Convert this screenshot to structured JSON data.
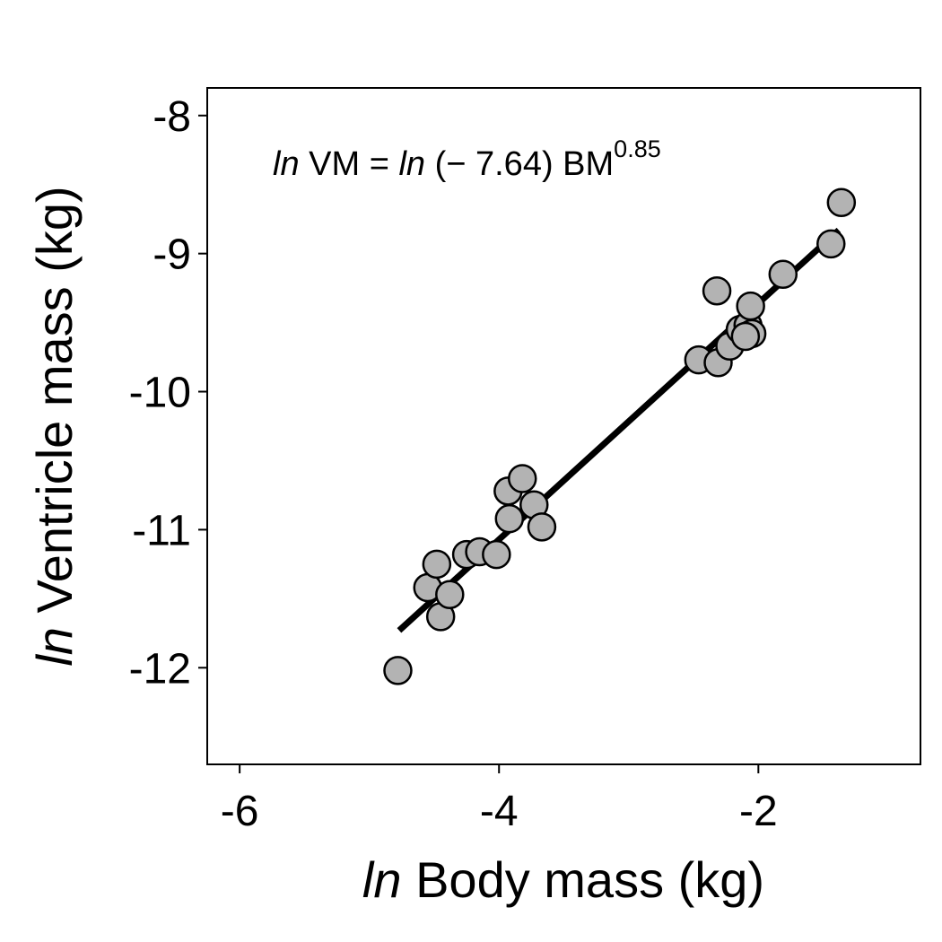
{
  "chart_data": {
    "type": "scatter",
    "title": "",
    "xlabel": {
      "prefix": "ln",
      "text": " Body mass (kg)"
    },
    "ylabel": {
      "prefix": "ln",
      "text": " Ventricle mass (kg)"
    },
    "xlim": [
      -6.25,
      -0.75
    ],
    "ylim": [
      -12.7,
      -7.8
    ],
    "xticks": [
      -6,
      -4,
      -2
    ],
    "xtick_labels": [
      "-6",
      "-4",
      "-2"
    ],
    "yticks": [
      -8,
      -9,
      -10,
      -11,
      -12
    ],
    "ytick_labels": [
      "-8",
      "-9",
      "-10",
      "-11",
      "-12"
    ],
    "grid": false,
    "legend": "none",
    "equation": {
      "ln1": "ln",
      "part1": " VM = ",
      "ln2": "ln",
      "part2": " (− 7.64) BM",
      "exponent": "0.85"
    },
    "fit_line": {
      "x": [
        -4.77,
        -1.38
      ],
      "y": [
        -11.73,
        -8.83
      ]
    },
    "points": [
      {
        "x": -4.78,
        "y": -12.02
      },
      {
        "x": -4.55,
        "y": -11.42
      },
      {
        "x": -4.48,
        "y": -11.25
      },
      {
        "x": -4.45,
        "y": -11.63
      },
      {
        "x": -4.38,
        "y": -11.47
      },
      {
        "x": -4.25,
        "y": -11.18
      },
      {
        "x": -4.15,
        "y": -11.16
      },
      {
        "x": -4.02,
        "y": -11.18
      },
      {
        "x": -3.93,
        "y": -10.72
      },
      {
        "x": -3.92,
        "y": -10.92
      },
      {
        "x": -3.82,
        "y": -10.63
      },
      {
        "x": -3.73,
        "y": -10.82
      },
      {
        "x": -3.67,
        "y": -10.98
      },
      {
        "x": -2.46,
        "y": -9.77
      },
      {
        "x": -2.32,
        "y": -9.27
      },
      {
        "x": -2.31,
        "y": -9.79
      },
      {
        "x": -2.22,
        "y": -9.67
      },
      {
        "x": -2.14,
        "y": -9.55
      },
      {
        "x": -2.08,
        "y": -9.52
      },
      {
        "x": -2.05,
        "y": -9.58
      },
      {
        "x": -2.1,
        "y": -9.6
      },
      {
        "x": -2.06,
        "y": -9.38
      },
      {
        "x": -1.81,
        "y": -9.15
      },
      {
        "x": -1.44,
        "y": -8.93
      },
      {
        "x": -1.36,
        "y": -8.63
      }
    ],
    "colors": {
      "point_fill": "#b3b3b3",
      "point_stroke": "#000000",
      "line": "#000000"
    }
  }
}
